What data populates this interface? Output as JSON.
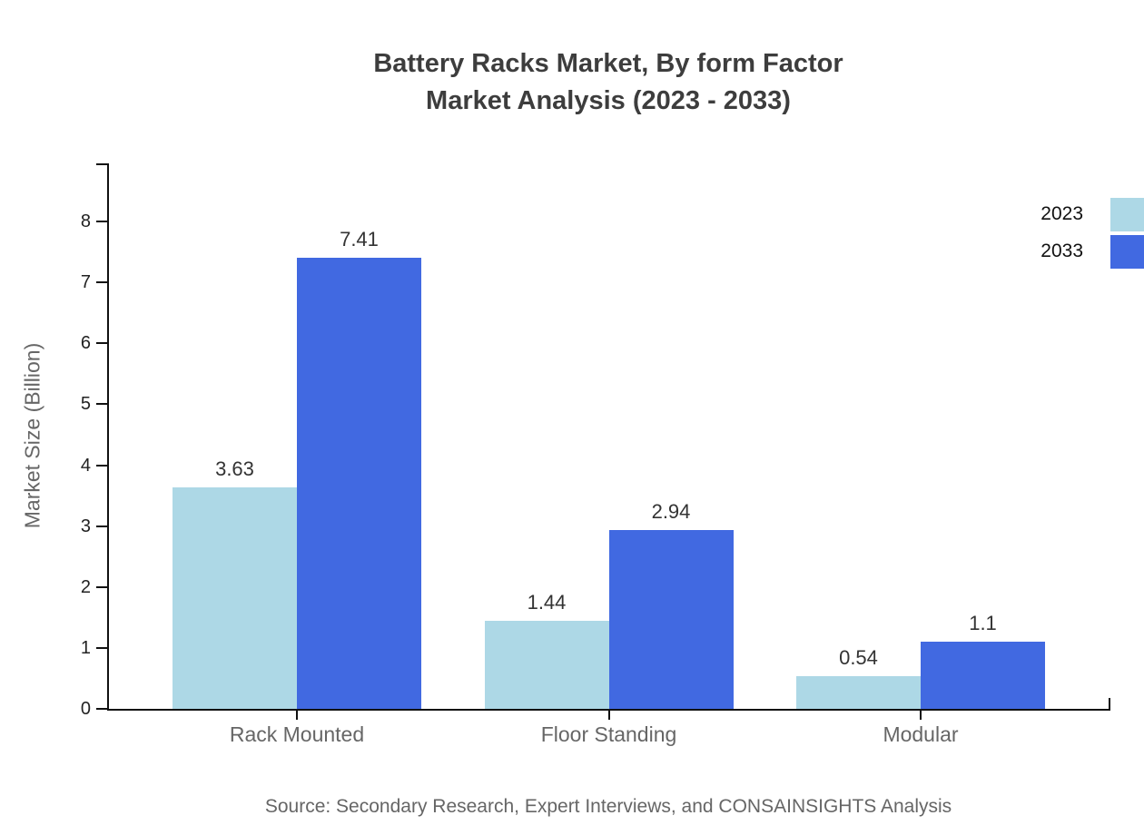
{
  "title": {
    "line1": "Battery Racks Market, By form Factor",
    "line2": "Market Analysis (2023 - 2033)"
  },
  "source": "Source: Secondary Research, Expert Interviews, and CONSAINSIGHTS Analysis",
  "chart_data": {
    "type": "bar",
    "title": "Battery Racks Market, By form Factor Market Analysis (2023 - 2033)",
    "categories": [
      "Rack Mounted",
      "Floor Standing",
      "Modular"
    ],
    "series": [
      {
        "name": "2023",
        "color": "#ADD8E6",
        "values": [
          3.63,
          1.44,
          0.54
        ],
        "labels": [
          "3.63",
          "1.44",
          "0.54"
        ]
      },
      {
        "name": "2033",
        "color": "#4169E1",
        "values": [
          7.41,
          2.94,
          1.1
        ],
        "labels": [
          "7.41",
          "2.94",
          "1.1"
        ]
      }
    ],
    "xlabel": "",
    "ylabel": "Market Size (Billion)",
    "ylim": [
      0,
      8.95
    ],
    "yticks": [
      0,
      1,
      2,
      3,
      4,
      5,
      6,
      7,
      8
    ],
    "grid": false,
    "legend_position": "top-right",
    "bar_value_labels": true,
    "axis_color": "#111111"
  }
}
